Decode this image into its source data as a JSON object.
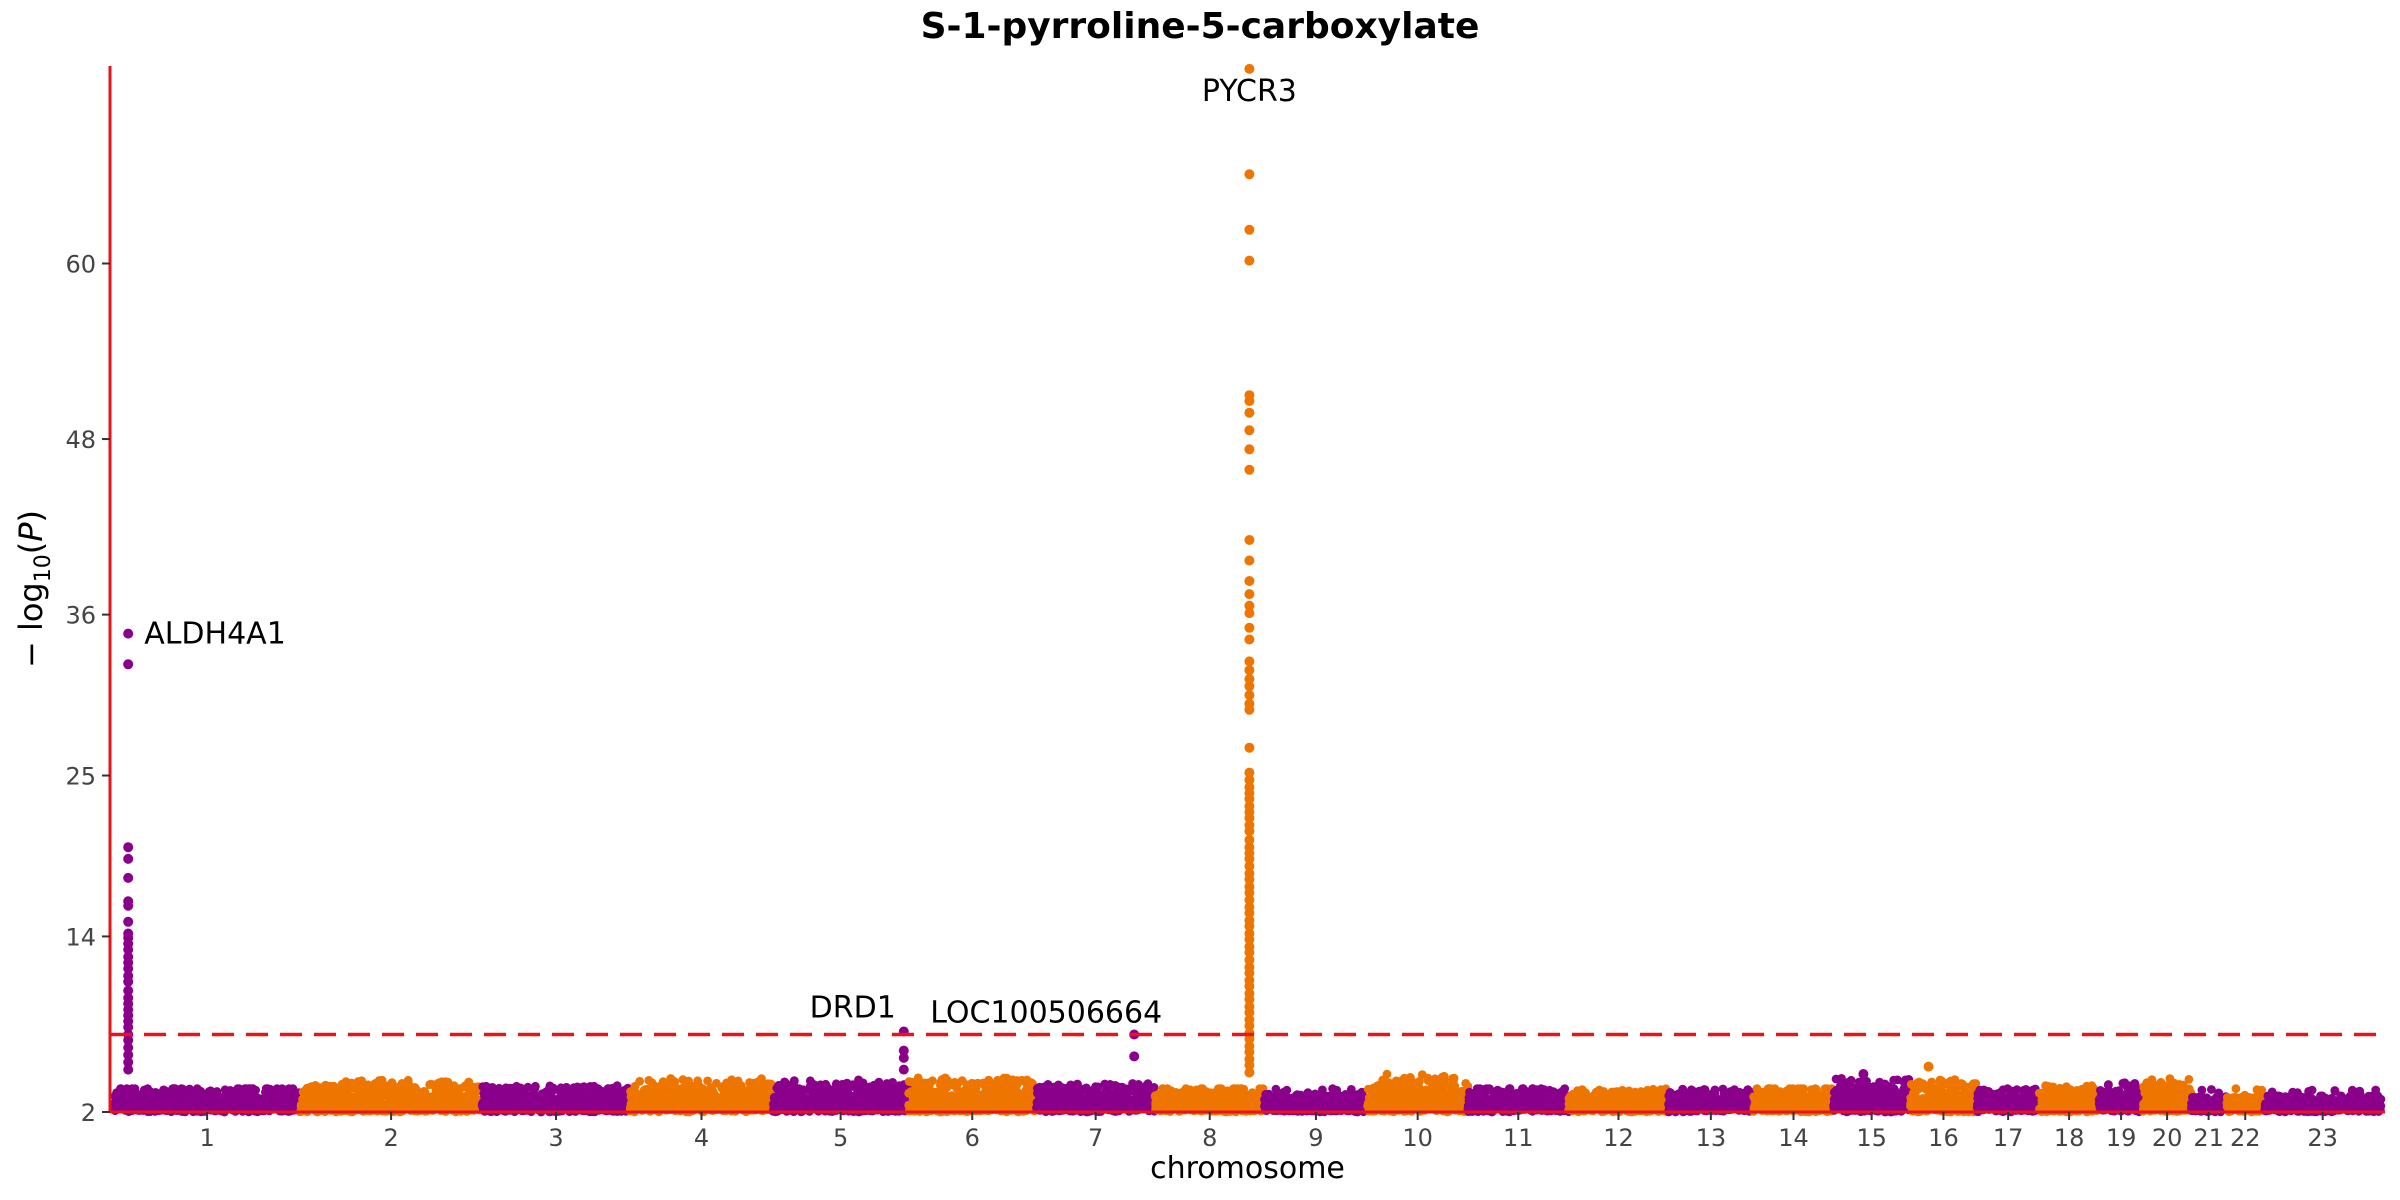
{
  "chart_data": {
    "type": "scatter",
    "title": "S-1-pyrroline-5-carboxylate",
    "xlabel": "chromosome",
    "ylabel_parts": [
      "− log",
      "10",
      "(",
      "P",
      ")"
    ],
    "y_ticks": [
      2,
      14,
      25,
      36,
      48,
      60
    ],
    "ylim": [
      2,
      73.5
    ],
    "chromosomes": [
      "1",
      "2",
      "3",
      "4",
      "5",
      "6",
      "7",
      "8",
      "9",
      "10",
      "11",
      "12",
      "13",
      "14",
      "15",
      "16",
      "17",
      "18",
      "19",
      "20",
      "21",
      "22",
      "23"
    ],
    "chromosome_lengths_mb": [
      249,
      243,
      198,
      191,
      181,
      171,
      159,
      146,
      138,
      134,
      135,
      133,
      114,
      107,
      102,
      90,
      83,
      80,
      59,
      64,
      47,
      51,
      156
    ],
    "colors": {
      "odd": "#8B008B",
      "even": "#EE7600",
      "axis": "#E8141C",
      "threshold": "#E8141C"
    },
    "threshold": 7.3,
    "background_ceiling_by_chromosome": [
      3.6,
      4.2,
      3.8,
      4.3,
      4.2,
      4.5,
      4.0,
      3.6,
      3.2,
      4.6,
      3.6,
      3.4,
      3.4,
      3.6,
      4.4,
      4.4,
      3.5,
      3.8,
      4.0,
      4.3,
      3.0,
      3.0,
      3.1
    ],
    "peaks": [
      {
        "chromosome": "1",
        "position_mb": 19,
        "label": "ALDH4A1",
        "points": [
          34.7,
          32.6,
          20.1,
          19.3,
          18.0,
          16.4,
          16.1,
          15.0,
          14.2,
          13.9,
          13.5,
          13.1,
          12.6,
          12.2,
          11.8,
          11.3,
          10.9,
          10.3,
          9.8,
          9.4,
          9.0,
          8.6,
          8.2,
          7.8,
          7.3,
          6.9,
          6.4,
          5.9,
          5.4,
          4.9
        ]
      },
      {
        "chromosome": "5",
        "position_mb": 175,
        "label": "DRD1",
        "points": [
          7.5,
          6.2,
          5.7,
          4.9
        ]
      },
      {
        "chromosome": "7",
        "position_mb": 131,
        "label": "LOC100506664",
        "points": [
          7.3,
          5.8
        ]
      },
      {
        "chromosome": "8",
        "position_mb": 126,
        "label": "PYCR3",
        "points": [
          73.3,
          66.1,
          62.3,
          60.2,
          51.0,
          50.6,
          49.8,
          48.6,
          47.3,
          45.9,
          41.1,
          39.7,
          38.3,
          37.4,
          36.6,
          36.1,
          35.1,
          34.3,
          32.8,
          32.2,
          31.6,
          31.1,
          30.5,
          29.9,
          29.5,
          26.9,
          25.2,
          24.7,
          24.2,
          23.8,
          23.4,
          22.9,
          22.5,
          22.1,
          21.6,
          21.2,
          20.6,
          20.1,
          19.7,
          19.3,
          18.8,
          18.3,
          17.9,
          17.4,
          17.0,
          16.5,
          16.0,
          15.6,
          15.1,
          14.7,
          14.2,
          13.8,
          13.3,
          12.9,
          12.4,
          11.9,
          11.5,
          11.0,
          10.6,
          10.1,
          9.7,
          9.2,
          8.8,
          8.3,
          7.9,
          7.4,
          7.0,
          6.5,
          6.1,
          5.6,
          5.2,
          4.7
        ]
      },
      {
        "chromosome": "15",
        "position_mb": 40,
        "label": "",
        "points": [
          4.6
        ]
      },
      {
        "chromosome": "16",
        "position_mb": 25,
        "label": "",
        "points": [
          5.1
        ]
      }
    ]
  }
}
